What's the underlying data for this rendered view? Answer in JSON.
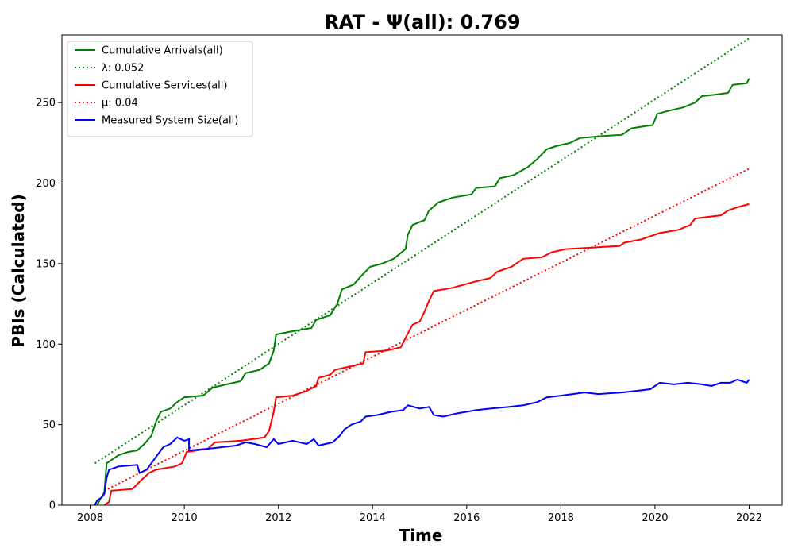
{
  "chart_data": {
    "type": "line",
    "title": "RAT -  Ψ(all): 0.769",
    "xlabel": "Time",
    "ylabel": "PBIs (Calculated)",
    "xlim": [
      2007.4,
      2022.7
    ],
    "ylim": [
      0,
      292
    ],
    "x_ticks": [
      2008,
      2010,
      2012,
      2014,
      2016,
      2018,
      2020,
      2022
    ],
    "y_ticks": [
      0,
      50,
      100,
      150,
      200,
      250
    ],
    "legend_position": "upper-left",
    "grid": false,
    "series": [
      {
        "name": "Cumulative Arrivals(all)",
        "style": "solid",
        "color": "#008000",
        "points": [
          [
            2008.15,
            0
          ],
          [
            2008.2,
            3
          ],
          [
            2008.3,
            8
          ],
          [
            2008.35,
            26
          ],
          [
            2008.45,
            28
          ],
          [
            2008.6,
            31
          ],
          [
            2008.8,
            33
          ],
          [
            2009.0,
            34
          ],
          [
            2009.15,
            38
          ],
          [
            2009.3,
            43
          ],
          [
            2009.4,
            52
          ],
          [
            2009.5,
            58
          ],
          [
            2009.7,
            60
          ],
          [
            2009.85,
            64
          ],
          [
            2010.0,
            67
          ],
          [
            2010.4,
            68
          ],
          [
            2010.6,
            73
          ],
          [
            2010.9,
            75
          ],
          [
            2011.2,
            77
          ],
          [
            2011.3,
            82
          ],
          [
            2011.6,
            84
          ],
          [
            2011.8,
            88
          ],
          [
            2011.9,
            96
          ],
          [
            2011.95,
            106
          ],
          [
            2012.3,
            108
          ],
          [
            2012.7,
            110
          ],
          [
            2012.8,
            115
          ],
          [
            2013.1,
            118
          ],
          [
            2013.25,
            125
          ],
          [
            2013.35,
            134
          ],
          [
            2013.6,
            137
          ],
          [
            2013.75,
            142
          ],
          [
            2013.95,
            148
          ],
          [
            2014.2,
            150
          ],
          [
            2014.45,
            153
          ],
          [
            2014.7,
            159
          ],
          [
            2014.75,
            168
          ],
          [
            2014.85,
            174
          ],
          [
            2015.1,
            177
          ],
          [
            2015.2,
            183
          ],
          [
            2015.4,
            188
          ],
          [
            2015.7,
            191
          ],
          [
            2016.1,
            193
          ],
          [
            2016.2,
            197
          ],
          [
            2016.6,
            198
          ],
          [
            2016.7,
            203
          ],
          [
            2017.0,
            205
          ],
          [
            2017.3,
            210
          ],
          [
            2017.5,
            215
          ],
          [
            2017.7,
            221
          ],
          [
            2017.9,
            223
          ],
          [
            2018.2,
            225
          ],
          [
            2018.4,
            228
          ],
          [
            2018.8,
            229
          ],
          [
            2019.3,
            230
          ],
          [
            2019.5,
            234
          ],
          [
            2019.7,
            235
          ],
          [
            2019.95,
            236
          ],
          [
            2020.05,
            243
          ],
          [
            2020.3,
            245
          ],
          [
            2020.6,
            247
          ],
          [
            2020.85,
            250
          ],
          [
            2021.0,
            254
          ],
          [
            2021.3,
            255
          ],
          [
            2021.55,
            256
          ],
          [
            2021.65,
            261
          ],
          [
            2021.95,
            262
          ],
          [
            2022.0,
            265
          ]
        ]
      },
      {
        "name": "λ: 0.052",
        "style": "dotted",
        "color": "#008000",
        "points": [
          [
            2008.1,
            26
          ],
          [
            2022.0,
            290
          ]
        ]
      },
      {
        "name": "Cumulative Services(all)",
        "style": "solid",
        "color": "#ff0000",
        "points": [
          [
            2008.3,
            0
          ],
          [
            2008.4,
            2
          ],
          [
            2008.45,
            9
          ],
          [
            2008.9,
            10
          ],
          [
            2009.0,
            13
          ],
          [
            2009.1,
            16
          ],
          [
            2009.25,
            20
          ],
          [
            2009.4,
            22
          ],
          [
            2009.8,
            24
          ],
          [
            2009.95,
            26
          ],
          [
            2010.05,
            33
          ],
          [
            2010.5,
            35
          ],
          [
            2010.65,
            39
          ],
          [
            2011.2,
            40
          ],
          [
            2011.7,
            42
          ],
          [
            2011.8,
            46
          ],
          [
            2011.9,
            58
          ],
          [
            2011.95,
            67
          ],
          [
            2012.3,
            68
          ],
          [
            2012.6,
            71
          ],
          [
            2012.8,
            74
          ],
          [
            2012.85,
            79
          ],
          [
            2013.1,
            81
          ],
          [
            2013.2,
            84
          ],
          [
            2013.5,
            86
          ],
          [
            2013.8,
            88
          ],
          [
            2013.85,
            95
          ],
          [
            2014.3,
            96
          ],
          [
            2014.6,
            98
          ],
          [
            2014.7,
            104
          ],
          [
            2014.85,
            112
          ],
          [
            2015.0,
            114
          ],
          [
            2015.1,
            120
          ],
          [
            2015.2,
            127
          ],
          [
            2015.3,
            133
          ],
          [
            2015.7,
            135
          ],
          [
            2015.95,
            137
          ],
          [
            2016.2,
            139
          ],
          [
            2016.5,
            141
          ],
          [
            2016.65,
            145
          ],
          [
            2016.95,
            148
          ],
          [
            2017.2,
            153
          ],
          [
            2017.6,
            154
          ],
          [
            2017.8,
            157
          ],
          [
            2018.1,
            159
          ],
          [
            2018.7,
            160
          ],
          [
            2019.25,
            161
          ],
          [
            2019.35,
            163
          ],
          [
            2019.7,
            165
          ],
          [
            2019.9,
            167
          ],
          [
            2020.1,
            169
          ],
          [
            2020.5,
            171
          ],
          [
            2020.75,
            174
          ],
          [
            2020.85,
            178
          ],
          [
            2021.4,
            180
          ],
          [
            2021.55,
            183
          ],
          [
            2021.75,
            185
          ],
          [
            2022.0,
            187
          ]
        ]
      },
      {
        "name": "μ: 0.04",
        "style": "dotted",
        "color": "#ff0000",
        "points": [
          [
            2008.3,
            9
          ],
          [
            2022.0,
            209
          ]
        ]
      },
      {
        "name": "Measured System Size(all)",
        "style": "solid",
        "color": "#0000ff",
        "points": [
          [
            2008.1,
            0
          ],
          [
            2008.15,
            3
          ],
          [
            2008.25,
            5
          ],
          [
            2008.3,
            7
          ],
          [
            2008.35,
            17
          ],
          [
            2008.4,
            22
          ],
          [
            2008.5,
            23
          ],
          [
            2008.6,
            24
          ],
          [
            2009.0,
            25
          ],
          [
            2009.05,
            20
          ],
          [
            2009.2,
            22
          ],
          [
            2009.3,
            26
          ],
          [
            2009.45,
            32
          ],
          [
            2009.55,
            36
          ],
          [
            2009.7,
            38
          ],
          [
            2009.85,
            42
          ],
          [
            2010.0,
            40
          ],
          [
            2010.1,
            41
          ],
          [
            2010.1,
            34
          ],
          [
            2010.5,
            35
          ],
          [
            2010.8,
            36
          ],
          [
            2011.1,
            37
          ],
          [
            2011.3,
            39
          ],
          [
            2011.5,
            38
          ],
          [
            2011.75,
            36
          ],
          [
            2011.9,
            41
          ],
          [
            2012.0,
            38
          ],
          [
            2012.3,
            40
          ],
          [
            2012.6,
            38
          ],
          [
            2012.75,
            41
          ],
          [
            2012.85,
            37
          ],
          [
            2013.15,
            39
          ],
          [
            2013.3,
            43
          ],
          [
            2013.4,
            47
          ],
          [
            2013.55,
            50
          ],
          [
            2013.75,
            52
          ],
          [
            2013.85,
            55
          ],
          [
            2014.1,
            56
          ],
          [
            2014.4,
            58
          ],
          [
            2014.65,
            59
          ],
          [
            2014.75,
            62
          ],
          [
            2015.0,
            60
          ],
          [
            2015.2,
            61
          ],
          [
            2015.3,
            56
          ],
          [
            2015.5,
            55
          ],
          [
            2015.8,
            57
          ],
          [
            2016.2,
            59
          ],
          [
            2016.5,
            60
          ],
          [
            2016.9,
            61
          ],
          [
            2017.2,
            62
          ],
          [
            2017.5,
            64
          ],
          [
            2017.7,
            67
          ],
          [
            2018.0,
            68
          ],
          [
            2018.5,
            70
          ],
          [
            2018.8,
            69
          ],
          [
            2019.3,
            70
          ],
          [
            2019.6,
            71
          ],
          [
            2019.9,
            72
          ],
          [
            2020.1,
            76
          ],
          [
            2020.4,
            75
          ],
          [
            2020.7,
            76
          ],
          [
            2021.0,
            75
          ],
          [
            2021.2,
            74
          ],
          [
            2021.4,
            76
          ],
          [
            2021.6,
            76
          ],
          [
            2021.75,
            78
          ],
          [
            2021.95,
            76
          ],
          [
            2022.0,
            78
          ]
        ]
      }
    ]
  }
}
